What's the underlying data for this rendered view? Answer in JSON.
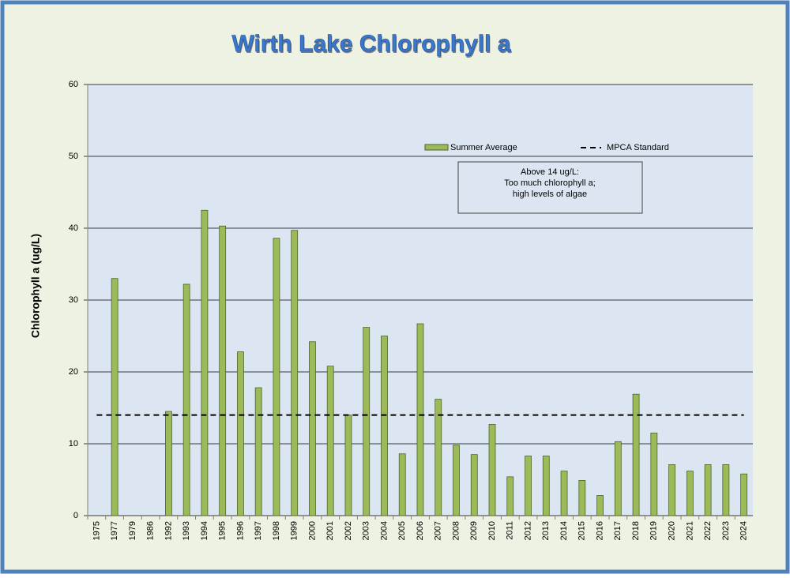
{
  "chart_data": {
    "type": "bar",
    "title": "Wirth Lake Chlorophyll a",
    "y_label": "Chlorophyll a (ug/L)",
    "categories": [
      "1975",
      "1977",
      "1979",
      "1986",
      "1992",
      "1993",
      "1994",
      "1995",
      "1996",
      "1997",
      "1998",
      "1999",
      "2000",
      "2001",
      "2002",
      "2003",
      "2004",
      "2005",
      "2006",
      "2007",
      "2008",
      "2009",
      "2010",
      "2011",
      "2012",
      "2013",
      "2014",
      "2015",
      "2016",
      "2017",
      "2018",
      "2019",
      "2020",
      "2021",
      "2022",
      "2023",
      "2024"
    ],
    "series": [
      {
        "name": "Summer Average",
        "color": "#9bbb59",
        "values": [
          null,
          33,
          null,
          null,
          14.5,
          32.2,
          42.5,
          40.3,
          22.8,
          17.8,
          38.6,
          39.7,
          24.2,
          20.8,
          14,
          26.2,
          25,
          8.6,
          26.7,
          16.2,
          9.8,
          8.5,
          12.7,
          5.4,
          8.3,
          8.3,
          6.2,
          4.9,
          2.8,
          10.3,
          16.9,
          11.5,
          7.1,
          6.2,
          7.1,
          7.1,
          5.8
        ]
      }
    ],
    "reference_line": {
      "name": "MPCA Standard",
      "value": 14,
      "color": "#000000"
    },
    "annotation": [
      "Above 14 ug/L:",
      "Too much chlorophyll a;",
      "high levels of algae"
    ],
    "ylim": [
      0,
      60
    ],
    "yticks": [
      0,
      10,
      20,
      30,
      40,
      50,
      60
    ],
    "grid": true
  }
}
